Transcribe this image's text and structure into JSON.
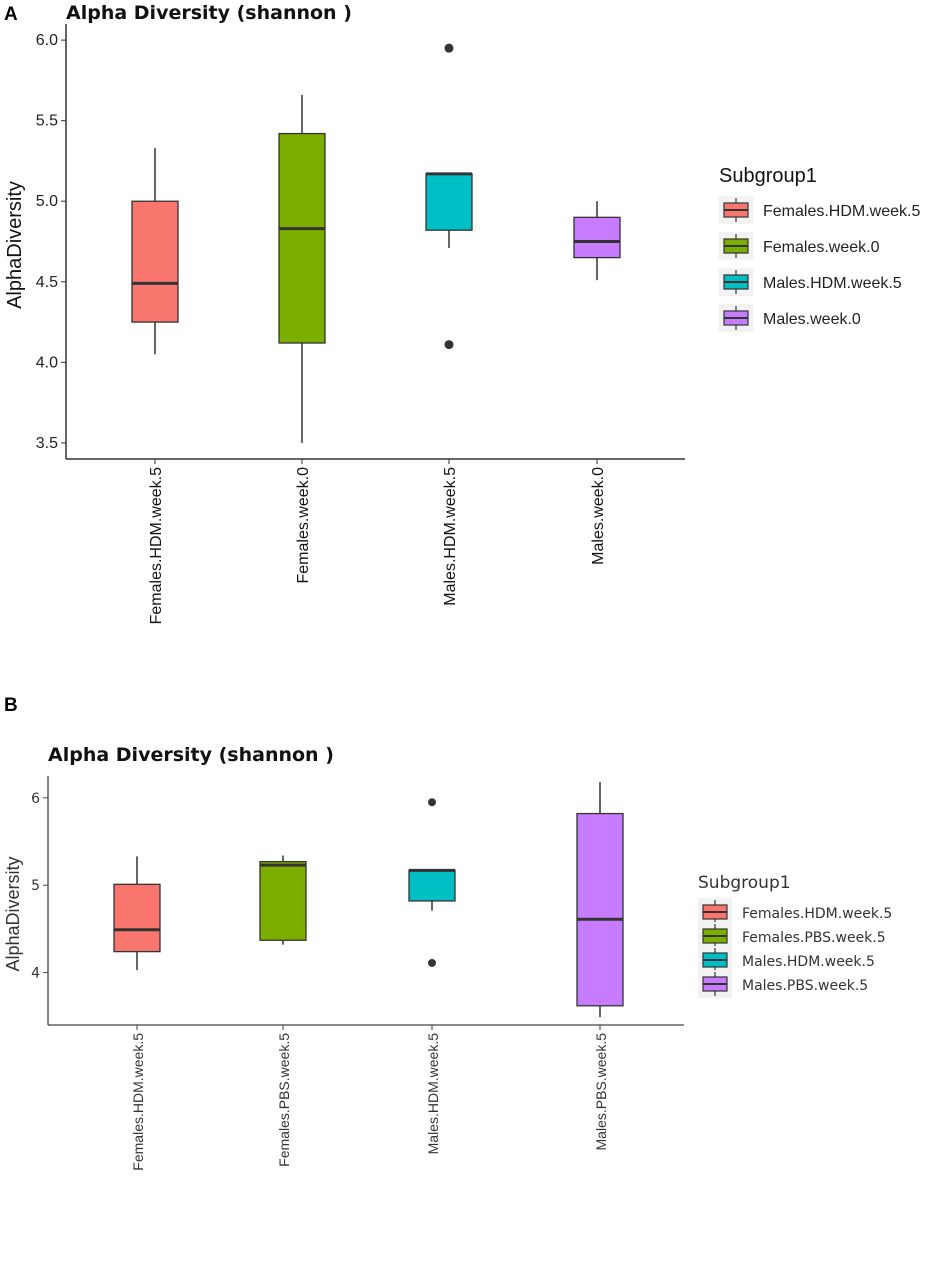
{
  "figure": {
    "panels": [
      {
        "letter": "A"
      },
      {
        "letter": "B"
      }
    ]
  },
  "chart_data": [
    {
      "type": "boxplot",
      "panel": "A",
      "title": "Alpha Diversity (shannon )",
      "xlabel": "",
      "ylabel": "AlphaDiversity",
      "ylim": [
        3.4,
        6.1
      ],
      "yticks": [
        3.5,
        4.0,
        4.5,
        5.0,
        5.5,
        6.0
      ],
      "ytick_labels": [
        "3.5",
        "4.0",
        "4.5",
        "5.0",
        "5.5",
        "6.0"
      ],
      "grid": false,
      "legend": {
        "title": "Subgroup1",
        "position": "right"
      },
      "categories": [
        "Females.HDM.week.5",
        "Females.week.0",
        "Males.HDM.week.5",
        "Males.week.0"
      ],
      "boxes": [
        {
          "name": "Females.HDM.week.5",
          "color": "#F8766D",
          "whisker_low": 4.05,
          "q1": 4.25,
          "median": 4.49,
          "q3": 5.0,
          "whisker_high": 5.33,
          "outliers": []
        },
        {
          "name": "Females.week.0",
          "color": "#7CAE00",
          "whisker_low": 3.5,
          "q1": 4.12,
          "median": 4.83,
          "q3": 5.42,
          "whisker_high": 5.66,
          "outliers": []
        },
        {
          "name": "Males.HDM.week.5",
          "color": "#00BFC4",
          "whisker_low": 4.71,
          "q1": 4.82,
          "median": 5.17,
          "q3": 5.17,
          "whisker_high": 5.17,
          "outliers": [
            5.95,
            4.11
          ]
        },
        {
          "name": "Males.week.0",
          "color": "#C77CFF",
          "whisker_low": 4.51,
          "q1": 4.65,
          "median": 4.75,
          "q3": 4.9,
          "whisker_high": 5.0,
          "outliers": []
        }
      ]
    },
    {
      "type": "boxplot",
      "panel": "B",
      "title": "Alpha Diversity (shannon )",
      "xlabel": "",
      "ylabel": "AlphaDiversity",
      "ylim": [
        3.4,
        6.25
      ],
      "yticks": [
        4,
        5,
        6
      ],
      "ytick_labels": [
        "4",
        "5",
        "6"
      ],
      "grid": false,
      "legend": {
        "title": "Subgroup1",
        "position": "right"
      },
      "categories": [
        "Females.HDM.week.5",
        "Females.PBS.week.5",
        "Males.HDM.week.5",
        "Males.PBS.week.5"
      ],
      "boxes": [
        {
          "name": "Females.HDM.week.5",
          "color": "#F8766D",
          "whisker_low": 4.03,
          "q1": 4.24,
          "median": 4.49,
          "q3": 5.01,
          "whisker_high": 5.33,
          "outliers": []
        },
        {
          "name": "Females.PBS.week.5",
          "color": "#7CAE00",
          "whisker_low": 4.32,
          "q1": 4.37,
          "median": 5.23,
          "q3": 5.27,
          "whisker_high": 5.34,
          "outliers": []
        },
        {
          "name": "Males.HDM.week.5",
          "color": "#00BFC4",
          "whisker_low": 4.71,
          "q1": 4.82,
          "median": 5.17,
          "q3": 5.17,
          "whisker_high": 5.17,
          "outliers": [
            5.95,
            4.11
          ]
        },
        {
          "name": "Males.PBS.week.5",
          "color": "#C77CFF",
          "whisker_low": 3.49,
          "q1": 3.62,
          "median": 4.61,
          "q3": 5.82,
          "whisker_high": 6.18,
          "outliers": []
        }
      ]
    }
  ]
}
